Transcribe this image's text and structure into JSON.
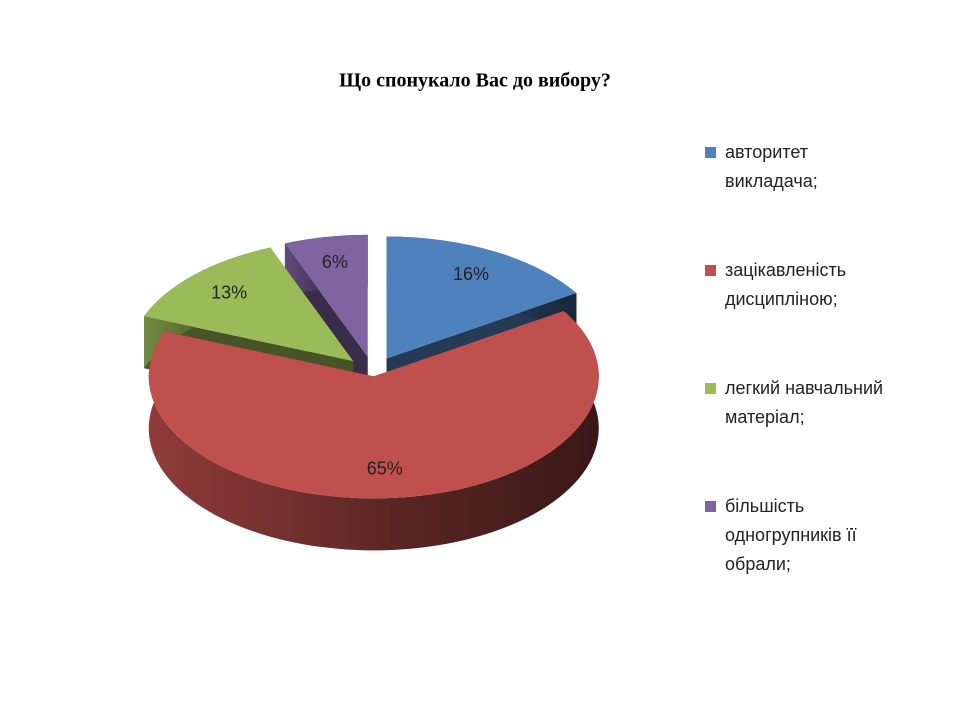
{
  "chart_data": {
    "type": "pie",
    "title": "Що спонукало Вас до вибору?",
    "categories": [
      "авторитет викладача;",
      "зацікавленість дисципліною;",
      "легкий навчальний матеріал;",
      "більшість одногрупників її обрали;"
    ],
    "values": [
      16,
      65,
      13,
      6
    ],
    "value_labels": [
      "16%",
      "65%",
      "13%",
      "6%"
    ],
    "colors": [
      "#4f81bd",
      "#c0504d",
      "#9bbb59",
      "#8064a2"
    ],
    "legend": "right",
    "three_d": true,
    "exploded": true
  }
}
